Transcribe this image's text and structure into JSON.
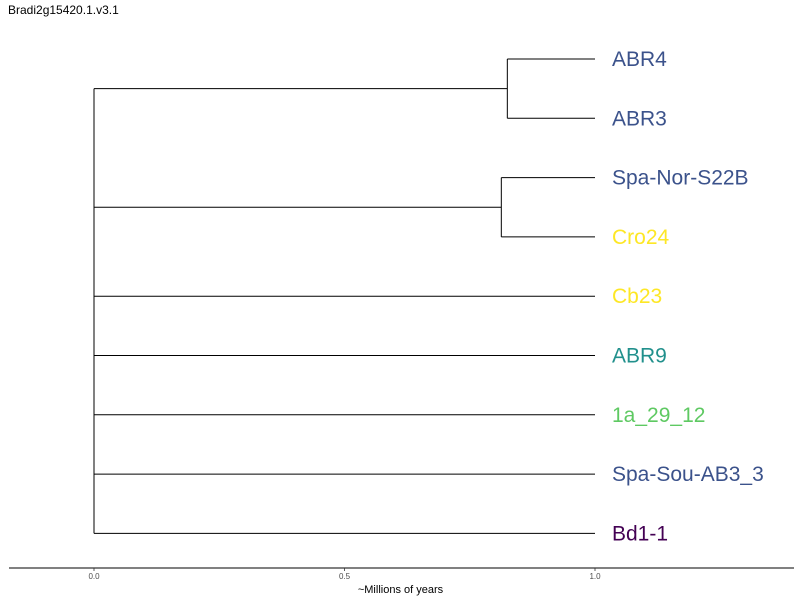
{
  "title": "Bradi2g15420.1.v3.1",
  "chart_data": {
    "type": "tree",
    "title": "Bradi2g15420.1.v3.1",
    "xlabel": "~Millions of years",
    "x_ticks": [
      0.0,
      0.5,
      1.0
    ],
    "x_tick_labels": [
      "0.0",
      "0.5",
      "1.0"
    ],
    "xlim": [
      -0.17,
      1.4
    ],
    "leaf_age": 1.0,
    "tips": [
      {
        "label": "ABR4",
        "color": "#3b528b"
      },
      {
        "label": "ABR3",
        "color": "#3b528b"
      },
      {
        "label": "Spa-Nor-S22B",
        "color": "#3b528b"
      },
      {
        "label": "Cro24",
        "color": "#fde725"
      },
      {
        "label": "Cb23",
        "color": "#fde725"
      },
      {
        "label": "ABR9",
        "color": "#21908c"
      },
      {
        "label": "1a_29_12",
        "color": "#5ec962"
      },
      {
        "label": "Spa-Sou-AB3_3",
        "color": "#3b528b"
      },
      {
        "label": "Bd1-1",
        "color": "#440154"
      }
    ],
    "clades": [
      {
        "members": [
          "ABR4",
          "ABR3"
        ],
        "node_x": 0.825
      },
      {
        "members": [
          "Spa-Nor-S22B",
          "Cro24"
        ],
        "node_x": 0.813
      }
    ],
    "root_x": 0.0
  }
}
